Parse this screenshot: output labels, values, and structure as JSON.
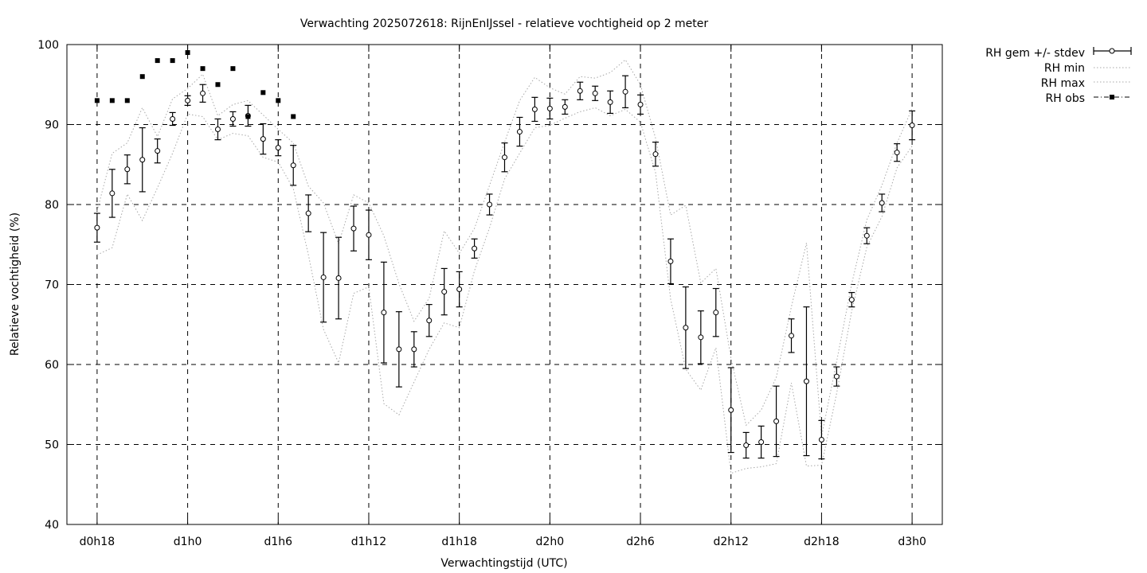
{
  "chart_data": {
    "type": "line",
    "title": "Verwachting 2025072618: RijnEnIJssel - relatieve vochtigheid op 2 meter",
    "xlabel": "Verwachtingstijd (UTC)",
    "ylabel": "Relatieve vochtigheid (%)",
    "ylim": [
      40,
      100
    ],
    "yticks": [
      40,
      50,
      60,
      70,
      80,
      90,
      100
    ],
    "xlim_hours": [
      16,
      74
    ],
    "xticks": [
      {
        "hour": 18,
        "label": "d0h18"
      },
      {
        "hour": 24,
        "label": "d1h0"
      },
      {
        "hour": 30,
        "label": "d1h6"
      },
      {
        "hour": 36,
        "label": "d1h12"
      },
      {
        "hour": 42,
        "label": "d1h18"
      },
      {
        "hour": 48,
        "label": "d2h0"
      },
      {
        "hour": 54,
        "label": "d2h6"
      },
      {
        "hour": 60,
        "label": "d2h12"
      },
      {
        "hour": 66,
        "label": "d2h18"
      },
      {
        "hour": 72,
        "label": "d3h0"
      }
    ],
    "grid": true,
    "legend_position": "outside-top-right",
    "x_hours": [
      18,
      19,
      20,
      21,
      22,
      23,
      24,
      25,
      26,
      27,
      28,
      29,
      30,
      31,
      32,
      33,
      34,
      35,
      36,
      37,
      38,
      39,
      40,
      41,
      42,
      43,
      44,
      45,
      46,
      47,
      48,
      49,
      50,
      51,
      52,
      53,
      54,
      55,
      56,
      57,
      58,
      59,
      60,
      61,
      62,
      63,
      64,
      65,
      66,
      67,
      68,
      69,
      70,
      71,
      72
    ],
    "series": [
      {
        "name": "RH gem +/- stdev",
        "style": "errorbars",
        "values": [
          77.1,
          81.4,
          84.4,
          85.6,
          86.7,
          90.7,
          93.0,
          93.9,
          89.4,
          90.7,
          91.1,
          88.2,
          87.1,
          84.9,
          78.9,
          70.9,
          70.8,
          77.0,
          76.2,
          66.5,
          61.9,
          61.9,
          65.5,
          69.1,
          69.4,
          74.5,
          80.0,
          85.9,
          89.1,
          91.9,
          92.0,
          92.2,
          94.2,
          93.9,
          92.8,
          94.1,
          92.5,
          86.3,
          72.9,
          64.6,
          63.4,
          66.5,
          54.3,
          49.9,
          50.3,
          52.9,
          63.6,
          57.9,
          50.6,
          58.5,
          68.1,
          76.1,
          80.2,
          86.5,
          89.9
        ],
        "stdev": [
          1.8,
          3.0,
          1.8,
          4.0,
          1.5,
          0.8,
          0.6,
          1.1,
          1.3,
          0.9,
          1.3,
          1.9,
          1.0,
          2.5,
          2.3,
          5.6,
          5.1,
          2.8,
          3.1,
          6.3,
          4.7,
          2.2,
          2.0,
          2.9,
          2.2,
          1.2,
          1.3,
          1.8,
          1.8,
          1.5,
          1.3,
          0.9,
          1.1,
          0.9,
          1.4,
          2.0,
          1.2,
          1.5,
          2.8,
          5.1,
          3.3,
          3.0,
          5.3,
          1.6,
          2.0,
          4.4,
          2.1,
          9.3,
          2.4,
          1.2,
          0.9,
          1.0,
          1.1,
          1.1,
          1.8
        ]
      },
      {
        "name": "RH min",
        "style": "dotted",
        "values": [
          73.7,
          74.6,
          81.3,
          78.0,
          82.1,
          86.4,
          91.3,
          91.0,
          88.1,
          88.9,
          88.6,
          85.9,
          85.3,
          82.0,
          73.7,
          64.4,
          60.2,
          68.9,
          69.7,
          55.1,
          53.7,
          57.8,
          61.9,
          65.2,
          64.6,
          71.7,
          77.1,
          83.2,
          86.4,
          89.6,
          89.9,
          90.8,
          91.6,
          92.1,
          91.1,
          91.9,
          90.3,
          84.0,
          68.2,
          59.4,
          56.8,
          62.1,
          46.4,
          47.0,
          47.2,
          47.6,
          57.7,
          47.3,
          47.4,
          56.4,
          66.7,
          74.7,
          78.5,
          84.6,
          87.3
        ]
      },
      {
        "name": "RH max",
        "style": "dotted",
        "values": [
          79.2,
          86.4,
          87.7,
          92.1,
          88.5,
          93.2,
          94.5,
          96.3,
          91.1,
          92.5,
          93.0,
          91.2,
          89.4,
          87.7,
          82.3,
          80.2,
          75.1,
          81.2,
          80.2,
          76.1,
          70.1,
          65.4,
          68.3,
          76.7,
          73.9,
          77.0,
          82.4,
          87.8,
          93.0,
          95.9,
          94.6,
          93.8,
          96.0,
          95.8,
          96.5,
          98.1,
          95.0,
          88.3,
          78.7,
          79.9,
          70.2,
          72.0,
          60.8,
          52.4,
          54.3,
          58.4,
          67.2,
          75.2,
          51.0,
          60.4,
          70.1,
          78.1,
          82.4,
          87.7,
          92.0
        ]
      },
      {
        "name": "RH obs",
        "style": "points",
        "x_hours": [
          18,
          19,
          20,
          21,
          22,
          23,
          24,
          25,
          26,
          27,
          28,
          29,
          30,
          31
        ],
        "values": [
          93,
          93,
          93,
          96,
          98,
          98,
          99,
          97,
          95,
          97,
          91,
          94,
          93,
          91
        ]
      }
    ]
  },
  "legend": [
    {
      "label": "RH gem +/- stdev",
      "symbol": "errorbar"
    },
    {
      "label": "RH min",
      "symbol": "dotted"
    },
    {
      "label": "RH max",
      "symbol": "dotted"
    },
    {
      "label": "RH obs",
      "symbol": "dashdot-point"
    }
  ]
}
